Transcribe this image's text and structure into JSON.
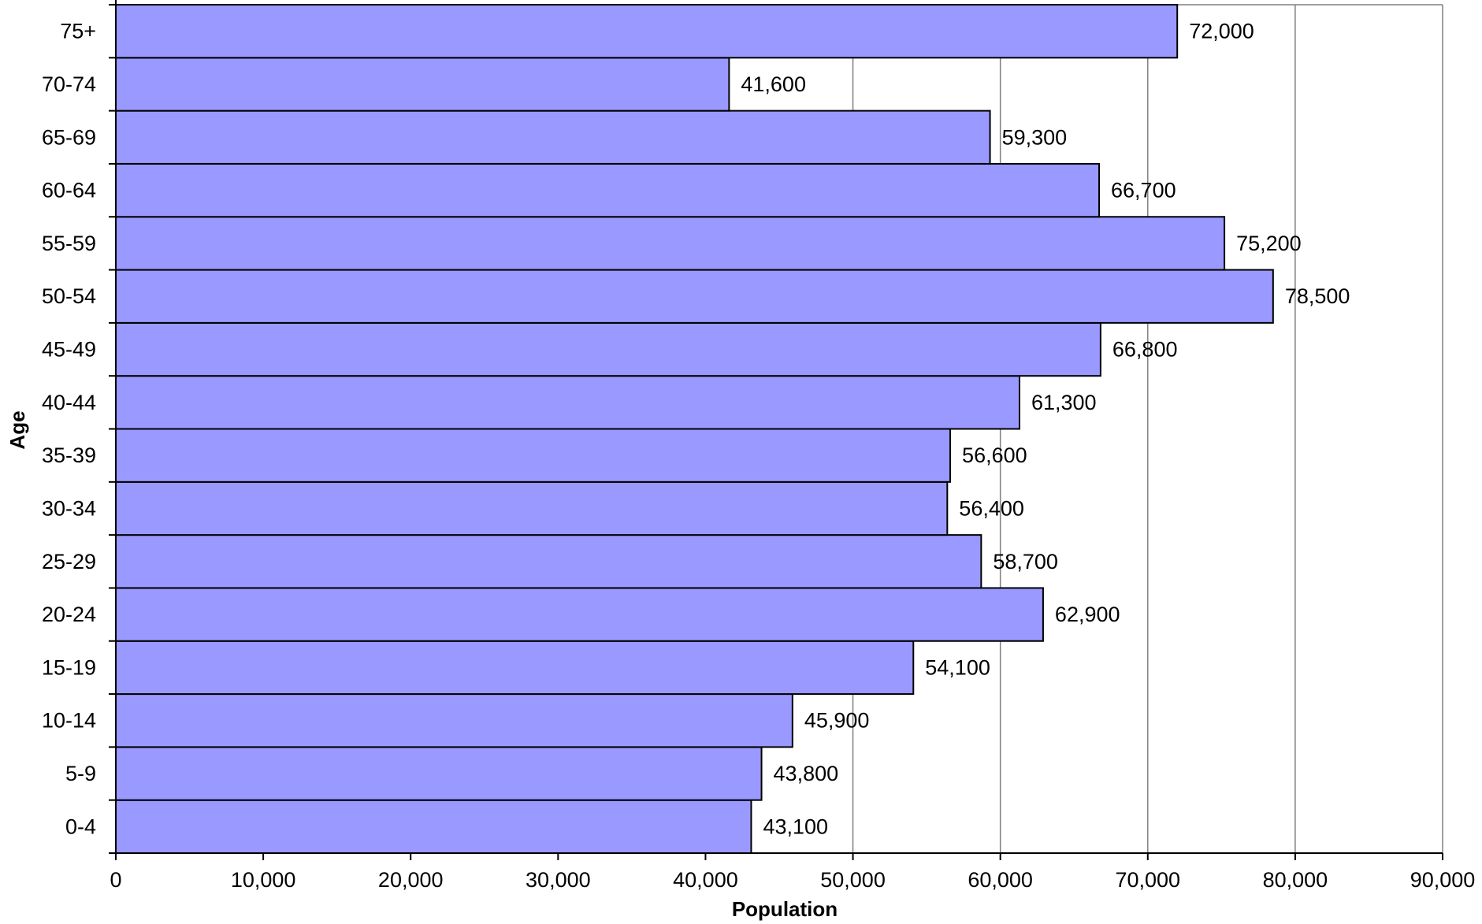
{
  "chart_data": {
    "type": "bar",
    "orientation": "horizontal",
    "title": "",
    "xlabel": "Population",
    "ylabel": "Age",
    "categories": [
      "0-4",
      "5-9",
      "10-14",
      "15-19",
      "20-24",
      "25-29",
      "30-34",
      "35-39",
      "40-44",
      "45-49",
      "50-54",
      "55-59",
      "60-64",
      "65-69",
      "70-74",
      "75+"
    ],
    "values": [
      43100,
      43800,
      45900,
      54100,
      62900,
      58700,
      56400,
      56600,
      61300,
      66800,
      78500,
      75200,
      66700,
      59300,
      41600,
      72000
    ],
    "value_labels": [
      "43,100",
      "43,800",
      "45,900",
      "54,100",
      "62,900",
      "58,700",
      "56,400",
      "56,600",
      "61,300",
      "66,800",
      "78,500",
      "75,200",
      "66,700",
      "59,300",
      "41,600",
      "72,000"
    ],
    "xlim": [
      0,
      90000
    ],
    "xticks": [
      0,
      10000,
      20000,
      30000,
      40000,
      50000,
      60000,
      70000,
      80000,
      90000
    ],
    "xtick_labels": [
      "0",
      "10,000",
      "20,000",
      "30,000",
      "40,000",
      "50,000",
      "60,000",
      "70,000",
      "80,000",
      "90,000"
    ],
    "grid": "vertical",
    "legend": "none",
    "colors": {
      "bar_fill": "#9999ff",
      "bar_stroke": "#000000",
      "grid": "#808080"
    }
  }
}
